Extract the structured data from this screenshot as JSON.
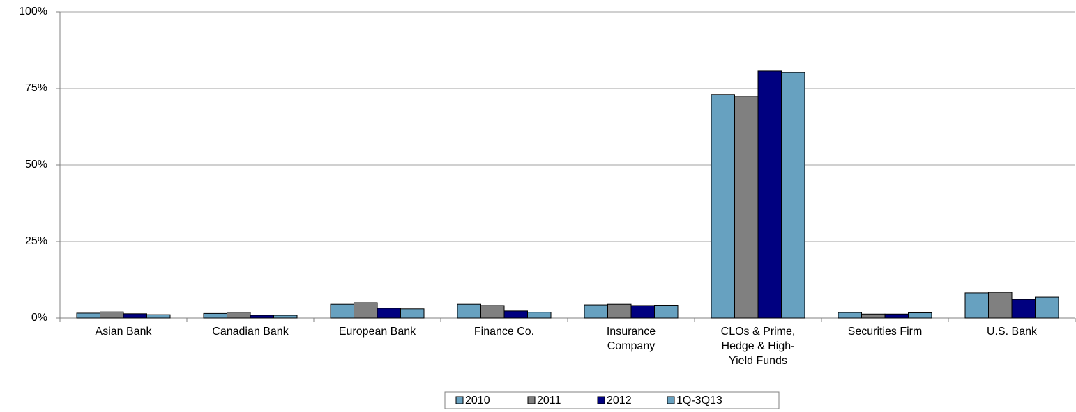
{
  "chart_data": {
    "type": "bar",
    "categories": [
      "Asian Bank",
      "Canadian Bank",
      "European Bank",
      "Finance Co.",
      "Insurance Company",
      "CLOs & Prime, Hedge & High-Yield Funds",
      "Securities Firm",
      "U.S. Bank"
    ],
    "series": [
      {
        "name": "2010",
        "color": "#67a1c0",
        "values": [
          1.6,
          1.5,
          4.5,
          4.5,
          4.3,
          73.0,
          1.8,
          8.2
        ]
      },
      {
        "name": "2011",
        "color": "#808080",
        "values": [
          2.0,
          1.9,
          5.0,
          4.1,
          4.5,
          72.3,
          1.3,
          8.4
        ]
      },
      {
        "name": "2012",
        "color": "#000080",
        "values": [
          1.4,
          0.9,
          3.2,
          2.3,
          4.1,
          80.7,
          1.3,
          6.1
        ]
      },
      {
        "name": "1Q-3Q13",
        "color": "#67a1c0",
        "values": [
          1.1,
          0.9,
          3.0,
          1.9,
          4.2,
          80.2,
          1.7,
          6.8
        ]
      }
    ],
    "ylim": [
      0,
      100
    ],
    "yticks": [
      {
        "value": 0,
        "label": "0%"
      },
      {
        "value": 25,
        "label": "25%"
      },
      {
        "value": 50,
        "label": "50%"
      },
      {
        "value": 75,
        "label": "75%"
      },
      {
        "value": 100,
        "label": "100%"
      }
    ],
    "grid": true
  }
}
